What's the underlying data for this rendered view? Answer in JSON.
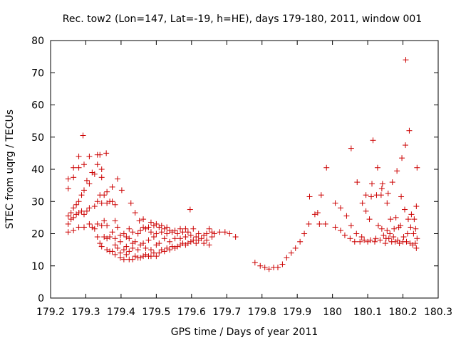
{
  "chart_data": {
    "type": "scatter",
    "title": "Rec. tow2 (Lon=147, Lat=-19, h=HE), days 179-180, 2011, window 001",
    "xlabel": "GPS time / Days of year 2011",
    "ylabel": "STEC from uqrg / TECUs",
    "xlim": [
      179.2,
      180.3
    ],
    "ylim": [
      0,
      80
    ],
    "xticks": [
      179.2,
      179.3,
      179.4,
      179.5,
      179.6,
      179.7,
      179.8,
      179.9,
      180,
      180.1,
      180.2,
      180.3
    ],
    "xtick_labels": [
      "179.2",
      "179.3",
      "179.4",
      "179.5",
      "179.6",
      "179.7",
      "179.8",
      "179.9",
      "180",
      "180.1",
      "180.2",
      "180.3"
    ],
    "yticks": [
      0,
      10,
      20,
      30,
      40,
      50,
      60,
      70,
      80
    ],
    "ytick_labels": [
      "0",
      "10",
      "20",
      "30",
      "40",
      "50",
      "60",
      "70",
      "80"
    ],
    "grid": false,
    "marker": "+",
    "marker_color": "#cc0000",
    "points": [
      [
        179.25,
        20.5
      ],
      [
        179.25,
        23.0
      ],
      [
        179.25,
        25.5
      ],
      [
        179.25,
        34.0
      ],
      [
        179.25,
        37.0
      ],
      [
        179.258,
        24.5
      ],
      [
        179.258,
        26.5
      ],
      [
        179.265,
        21.0
      ],
      [
        179.265,
        25.0
      ],
      [
        179.265,
        28.0
      ],
      [
        179.265,
        40.5
      ],
      [
        179.265,
        37.5
      ],
      [
        179.273,
        26.0
      ],
      [
        179.273,
        29.0
      ],
      [
        179.28,
        22.0
      ],
      [
        179.28,
        26.5
      ],
      [
        179.28,
        30.0
      ],
      [
        179.28,
        40.5
      ],
      [
        179.28,
        44.0
      ],
      [
        179.288,
        27.0
      ],
      [
        179.288,
        32.0
      ],
      [
        179.295,
        22.0
      ],
      [
        179.295,
        26.0
      ],
      [
        179.295,
        33.5
      ],
      [
        179.295,
        41.5
      ],
      [
        179.292,
        50.5
      ],
      [
        179.303,
        27.0
      ],
      [
        179.303,
        36.5
      ],
      [
        179.31,
        23.0
      ],
      [
        179.31,
        28.0
      ],
      [
        179.31,
        35.5
      ],
      [
        179.31,
        44.0
      ],
      [
        179.318,
        22.0
      ],
      [
        179.318,
        39.0
      ],
      [
        179.325,
        21.5
      ],
      [
        179.325,
        28.5
      ],
      [
        179.325,
        38.5
      ],
      [
        179.333,
        19.0
      ],
      [
        179.333,
        23.0
      ],
      [
        179.333,
        30.0
      ],
      [
        179.333,
        41.5
      ],
      [
        179.333,
        44.5
      ],
      [
        179.34,
        17.0
      ],
      [
        179.34,
        32.0
      ],
      [
        179.34,
        44.5
      ],
      [
        179.345,
        16.0
      ],
      [
        179.345,
        22.5
      ],
      [
        179.345,
        29.5
      ],
      [
        179.345,
        37.5
      ],
      [
        179.345,
        40.0
      ],
      [
        179.352,
        19.0
      ],
      [
        179.352,
        24.0
      ],
      [
        179.352,
        32.0
      ],
      [
        179.36,
        15.0
      ],
      [
        179.36,
        18.5
      ],
      [
        179.36,
        22.5
      ],
      [
        179.36,
        29.5
      ],
      [
        179.36,
        33.0
      ],
      [
        179.358,
        45.0
      ],
      [
        179.368,
        14.5
      ],
      [
        179.368,
        19.0
      ],
      [
        179.368,
        30.0
      ],
      [
        179.375,
        14.5
      ],
      [
        179.375,
        20.5
      ],
      [
        179.375,
        30.0
      ],
      [
        179.375,
        34.5
      ],
      [
        179.383,
        13.5
      ],
      [
        179.383,
        16.5
      ],
      [
        179.383,
        18.5
      ],
      [
        179.383,
        24.0
      ],
      [
        179.383,
        29.0
      ],
      [
        179.39,
        15.5
      ],
      [
        179.39,
        22.0
      ],
      [
        179.39,
        37.0
      ],
      [
        179.398,
        12.5
      ],
      [
        179.398,
        14.0
      ],
      [
        179.398,
        17.5
      ],
      [
        179.398,
        19.5
      ],
      [
        179.402,
        33.5
      ],
      [
        179.408,
        12.0
      ],
      [
        179.408,
        15.0
      ],
      [
        179.408,
        20.0
      ],
      [
        179.415,
        13.5
      ],
      [
        179.415,
        16.0
      ],
      [
        179.415,
        19.0
      ],
      [
        179.423,
        12.0
      ],
      [
        179.423,
        14.5
      ],
      [
        179.423,
        18.5
      ],
      [
        179.423,
        21.5
      ],
      [
        179.428,
        29.5
      ],
      [
        179.433,
        12.0
      ],
      [
        179.433,
        15.5
      ],
      [
        179.433,
        17.0
      ],
      [
        179.433,
        20.5
      ],
      [
        179.44,
        13.0
      ],
      [
        179.44,
        17.5
      ],
      [
        179.44,
        26.5
      ],
      [
        179.448,
        12.5
      ],
      [
        179.448,
        15.0
      ],
      [
        179.448,
        20.0
      ],
      [
        179.452,
        24.0
      ],
      [
        179.455,
        12.5
      ],
      [
        179.455,
        16.5
      ],
      [
        179.455,
        21.0
      ],
      [
        179.463,
        13.0
      ],
      [
        179.463,
        17.0
      ],
      [
        179.463,
        22.0
      ],
      [
        179.463,
        24.5
      ],
      [
        179.47,
        13.5
      ],
      [
        179.47,
        15.5
      ],
      [
        179.47,
        21.5
      ],
      [
        179.478,
        13.0
      ],
      [
        179.478,
        18.0
      ],
      [
        179.478,
        22.0
      ],
      [
        179.485,
        13.0
      ],
      [
        179.485,
        15.0
      ],
      [
        179.485,
        20.5
      ],
      [
        179.485,
        23.5
      ],
      [
        179.493,
        14.0
      ],
      [
        179.493,
        19.0
      ],
      [
        179.493,
        22.5
      ],
      [
        179.5,
        13.0
      ],
      [
        179.5,
        16.5
      ],
      [
        179.5,
        20.0
      ],
      [
        179.5,
        23.0
      ],
      [
        179.508,
        14.0
      ],
      [
        179.508,
        17.0
      ],
      [
        179.508,
        22.0
      ],
      [
        179.515,
        15.0
      ],
      [
        179.515,
        20.5
      ],
      [
        179.515,
        22.5
      ],
      [
        179.523,
        14.5
      ],
      [
        179.523,
        18.5
      ],
      [
        179.523,
        21.5
      ],
      [
        179.53,
        15.5
      ],
      [
        179.53,
        20.0
      ],
      [
        179.53,
        22.0
      ],
      [
        179.538,
        15.0
      ],
      [
        179.538,
        17.5
      ],
      [
        179.538,
        21.0
      ],
      [
        179.545,
        16.0
      ],
      [
        179.545,
        20.5
      ],
      [
        179.553,
        15.5
      ],
      [
        179.553,
        18.5
      ],
      [
        179.553,
        21.0
      ],
      [
        179.56,
        16.0
      ],
      [
        179.56,
        20.0
      ],
      [
        179.568,
        16.5
      ],
      [
        179.568,
        18.5
      ],
      [
        179.568,
        21.5
      ],
      [
        179.575,
        17.0
      ],
      [
        179.575,
        20.5
      ],
      [
        179.583,
        16.5
      ],
      [
        179.583,
        19.0
      ],
      [
        179.583,
        21.5
      ],
      [
        179.59,
        17.0
      ],
      [
        179.59,
        20.5
      ],
      [
        179.596,
        27.5
      ],
      [
        179.598,
        17.5
      ],
      [
        179.598,
        19.5
      ],
      [
        179.605,
        18.0
      ],
      [
        179.605,
        21.5
      ],
      [
        179.613,
        17.0
      ],
      [
        179.613,
        19.0
      ],
      [
        179.62,
        18.0
      ],
      [
        179.62,
        20.0
      ],
      [
        179.628,
        18.5
      ],
      [
        179.635,
        17.0
      ],
      [
        179.635,
        19.5
      ],
      [
        179.643,
        18.0
      ],
      [
        179.643,
        20.0
      ],
      [
        179.65,
        16.5
      ],
      [
        179.65,
        21.5
      ],
      [
        179.658,
        19.0
      ],
      [
        179.658,
        20.5
      ],
      [
        179.665,
        20.0
      ],
      [
        179.68,
        20.5
      ],
      [
        179.695,
        20.5
      ],
      [
        179.708,
        20.0
      ],
      [
        179.725,
        19.0
      ],
      [
        179.78,
        11.0
      ],
      [
        179.795,
        10.0
      ],
      [
        179.808,
        9.5
      ],
      [
        179.82,
        9.0
      ],
      [
        179.833,
        9.5
      ],
      [
        179.845,
        9.5
      ],
      [
        179.858,
        10.5
      ],
      [
        179.87,
        12.5
      ],
      [
        179.883,
        14.0
      ],
      [
        179.895,
        15.5
      ],
      [
        179.908,
        17.5
      ],
      [
        179.92,
        20.0
      ],
      [
        179.933,
        23.0
      ],
      [
        179.935,
        31.5
      ],
      [
        179.95,
        26.0
      ],
      [
        179.958,
        26.5
      ],
      [
        179.963,
        23.0
      ],
      [
        179.968,
        32.0
      ],
      [
        179.983,
        40.5
      ],
      [
        179.98,
        23.0
      ],
      [
        180.008,
        22.0
      ],
      [
        180.008,
        29.5
      ],
      [
        180.023,
        21.0
      ],
      [
        180.023,
        28.0
      ],
      [
        180.035,
        19.5
      ],
      [
        180.04,
        25.5
      ],
      [
        180.05,
        18.5
      ],
      [
        180.053,
        22.5
      ],
      [
        180.053,
        46.5
      ],
      [
        180.063,
        17.5
      ],
      [
        180.068,
        20.0
      ],
      [
        180.07,
        36.0
      ],
      [
        180.078,
        17.5
      ],
      [
        180.083,
        19.0
      ],
      [
        180.085,
        29.5
      ],
      [
        180.09,
        18.0
      ],
      [
        180.095,
        27.0
      ],
      [
        180.095,
        32.0
      ],
      [
        180.1,
        17.5
      ],
      [
        180.105,
        24.5
      ],
      [
        180.108,
        18.0
      ],
      [
        180.11,
        31.5
      ],
      [
        180.112,
        35.5
      ],
      [
        180.115,
        49.0
      ],
      [
        180.12,
        17.5
      ],
      [
        180.123,
        18.5
      ],
      [
        180.125,
        32.0
      ],
      [
        180.128,
        40.5
      ],
      [
        180.13,
        22.5
      ],
      [
        180.135,
        18.0
      ],
      [
        180.138,
        32.0
      ],
      [
        180.14,
        21.5
      ],
      [
        180.14,
        34.0
      ],
      [
        180.142,
        35.5
      ],
      [
        180.145,
        19.5
      ],
      [
        180.15,
        17.0
      ],
      [
        180.152,
        18.5
      ],
      [
        180.155,
        21.0
      ],
      [
        180.155,
        29.5
      ],
      [
        180.158,
        32.5
      ],
      [
        180.16,
        18.5
      ],
      [
        180.163,
        20.0
      ],
      [
        180.165,
        24.5
      ],
      [
        180.168,
        17.5
      ],
      [
        180.17,
        36.0
      ],
      [
        180.173,
        19.0
      ],
      [
        180.175,
        21.5
      ],
      [
        180.178,
        17.5
      ],
      [
        180.18,
        25.0
      ],
      [
        180.183,
        39.5
      ],
      [
        180.185,
        18.0
      ],
      [
        180.188,
        22.0
      ],
      [
        180.19,
        17.0
      ],
      [
        180.193,
        22.5
      ],
      [
        180.195,
        31.5
      ],
      [
        180.197,
        43.5
      ],
      [
        180.2,
        17.5
      ],
      [
        180.202,
        19.0
      ],
      [
        180.205,
        27.5
      ],
      [
        180.207,
        47.5
      ],
      [
        180.208,
        74.0
      ],
      [
        180.21,
        17.5
      ],
      [
        180.213,
        20.0
      ],
      [
        180.215,
        24.5
      ],
      [
        180.218,
        52.0
      ],
      [
        180.22,
        17.0
      ],
      [
        180.222,
        22.0
      ],
      [
        180.224,
        26.0
      ],
      [
        180.228,
        16.5
      ],
      [
        180.23,
        20.0
      ],
      [
        180.232,
        24.5
      ],
      [
        180.235,
        17.0
      ],
      [
        180.236,
        21.5
      ],
      [
        180.238,
        28.5
      ],
      [
        180.238,
        15.5
      ],
      [
        180.24,
        40.5
      ],
      [
        180.24,
        18.5
      ]
    ]
  }
}
